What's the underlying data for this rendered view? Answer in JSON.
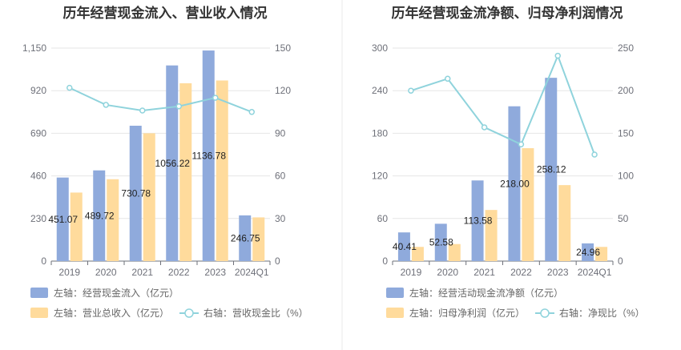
{
  "chart_data": [
    {
      "type": "bar",
      "title": "历年经营现金流入、营业收入情况",
      "categories": [
        "2019",
        "2020",
        "2021",
        "2022",
        "2023",
        "2024Q1"
      ],
      "left_axis": {
        "ticks": [
          "0",
          "230",
          "460",
          "690",
          "920",
          "1,150"
        ],
        "range": [
          0,
          1150
        ]
      },
      "right_axis": {
        "ticks": [
          "0",
          "30",
          "60",
          "90",
          "120",
          "150"
        ],
        "range": [
          0,
          150
        ]
      },
      "series": [
        {
          "name": "左轴：经营现金流入（亿元）",
          "axis": "left",
          "type": "bar",
          "color": "#8faadc",
          "values": [
            451.07,
            489.72,
            730.78,
            1056.22,
            1136.78,
            246.75
          ],
          "labels": [
            "451.07",
            "489.72",
            "730.78",
            "1056.22",
            "1136.78",
            "246.75"
          ]
        },
        {
          "name": "左轴：营业总收入（亿元）",
          "axis": "left",
          "type": "bar",
          "color": "#ffdb9c",
          "values": [
            370,
            442,
            690,
            960,
            975,
            236
          ]
        },
        {
          "name": "右轴：营收现金比（%）",
          "axis": "right",
          "type": "line",
          "color": "#8fd3dc",
          "values": [
            122,
            110,
            106,
            109,
            115,
            105
          ]
        }
      ]
    },
    {
      "type": "bar",
      "title": "历年经营现金流净额、归母净利润情况",
      "categories": [
        "2019",
        "2020",
        "2021",
        "2022",
        "2023",
        "2024Q1"
      ],
      "left_axis": {
        "ticks": [
          "0",
          "60",
          "120",
          "180",
          "240",
          "300"
        ],
        "range": [
          0,
          300
        ]
      },
      "right_axis": {
        "ticks": [
          "0",
          "50",
          "100",
          "150",
          "200",
          "250"
        ],
        "range": [
          0,
          250
        ]
      },
      "series": [
        {
          "name": "左轴：经营活动现金流净额（亿元）",
          "axis": "left",
          "type": "bar",
          "color": "#8faadc",
          "values": [
            40.41,
            52.58,
            113.58,
            218.0,
            258.12,
            24.96
          ],
          "labels": [
            "40.41",
            "52.58",
            "113.58",
            "218.00",
            "258.12",
            "24.96"
          ]
        },
        {
          "name": "左轴：归母净利润（亿元）",
          "axis": "left",
          "type": "bar",
          "color": "#ffdb9c",
          "values": [
            20,
            24,
            72,
            159,
            107,
            20
          ]
        },
        {
          "name": "右轴：净现比（%）",
          "axis": "right",
          "type": "line",
          "color": "#8fd3dc",
          "values": [
            200,
            214,
            157,
            137,
            241,
            125
          ]
        }
      ]
    }
  ]
}
